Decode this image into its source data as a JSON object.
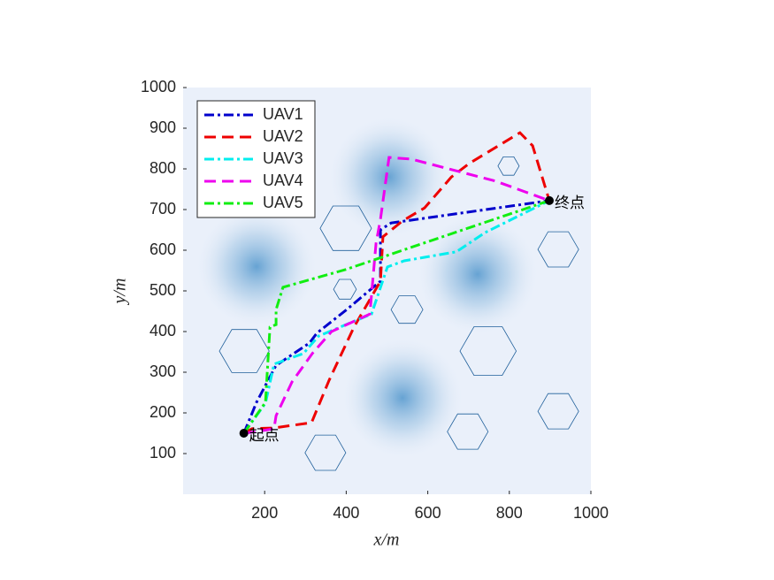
{
  "chart_data": {
    "type": "line",
    "xlabel": "x/m",
    "ylabel": "y/m",
    "xlim": [
      0,
      1000
    ],
    "ylim": [
      0,
      1000
    ],
    "xticks": [
      200,
      400,
      600,
      800,
      1000
    ],
    "yticks": [
      100,
      200,
      300,
      400,
      500,
      600,
      700,
      800,
      900,
      1000
    ],
    "legend": "upper left",
    "series": [
      {
        "name": "UAV1",
        "color": "#0000cc",
        "style": "dash-dot",
        "x": [
          149,
          180,
          228,
          310,
          328,
          401,
          484,
          484,
          510,
          588,
          898
        ],
        "values": [
          150,
          226,
          317,
          372,
          396,
          454,
          524,
          650,
          667,
          678,
          722
        ]
      },
      {
        "name": "UAV2",
        "color": "#ee0000",
        "style": "dashed",
        "x": [
          149,
          169,
          223,
          315,
          358,
          419,
          484,
          490,
          538,
          592,
          658,
          701,
          826,
          857,
          898
        ],
        "values": [
          150,
          161,
          163,
          176,
          280,
          411,
          524,
          633,
          672,
          704,
          780,
          813,
          889,
          857,
          722
        ]
      },
      {
        "name": "UAV3",
        "color": "#00eeee",
        "style": "dash-dot",
        "x": [
          149,
          202,
          223,
          295,
          332,
          462,
          501,
          542,
          670,
          740,
          898
        ],
        "values": [
          150,
          224,
          320,
          346,
          389,
          443,
          559,
          574,
          596,
          643,
          722
        ]
      },
      {
        "name": "UAV4",
        "color": "#ee00ee",
        "style": "dashed",
        "x": [
          149,
          180,
          223,
          228,
          267,
          317,
          364,
          458,
          473,
          484,
          505,
          560,
          766,
          898
        ],
        "values": [
          150,
          154,
          161,
          193,
          276,
          346,
          400,
          443,
          617,
          676,
          828,
          824,
          770,
          722
        ]
      },
      {
        "name": "UAV5",
        "color": "#11ee11",
        "style": "dash-dot",
        "x": [
          149,
          202,
          213,
          228,
          228,
          245,
          397,
          636,
          898
        ],
        "values": [
          150,
          226,
          411,
          417,
          454,
          509,
          552,
          633,
          722
        ]
      }
    ],
    "obstacles": [
      {
        "x": 399,
        "y": 654,
        "r": 63
      },
      {
        "x": 798,
        "y": 807,
        "r": 26
      },
      {
        "x": 397,
        "y": 504,
        "r": 28
      },
      {
        "x": 549,
        "y": 454,
        "r": 39
      },
      {
        "x": 920,
        "y": 602,
        "r": 50
      },
      {
        "x": 150,
        "y": 352,
        "r": 61
      },
      {
        "x": 748,
        "y": 352,
        "r": 69
      },
      {
        "x": 920,
        "y": 204,
        "r": 50
      },
      {
        "x": 698,
        "y": 154,
        "r": 50
      },
      {
        "x": 349,
        "y": 102,
        "r": 50
      }
    ],
    "threats": [
      {
        "x": 505,
        "y": 780
      },
      {
        "x": 538,
        "y": 237
      },
      {
        "x": 722,
        "y": 541
      },
      {
        "x": 180,
        "y": 560
      }
    ],
    "start": {
      "x": 149,
      "y": 150,
      "label": "起点"
    },
    "end": {
      "x": 898,
      "y": 722,
      "label": "终点"
    }
  }
}
